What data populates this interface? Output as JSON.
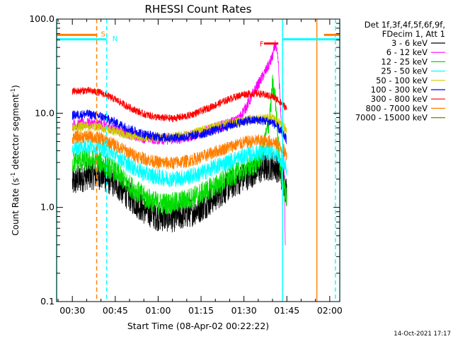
{
  "chart_data": {
    "type": "line",
    "title": "RHESSI Count Rates",
    "xlabel": "Start Time (08-Apr-02 00:22:22)",
    "ylabel_main": "Count Rate (s",
    "ylabel_sup": "-1",
    "ylabel_mid": " detector segment",
    "ylabel_sup2": "-1",
    "ylabel_end": ")",
    "y_scale": "log",
    "ylim": [
      0.1,
      100
    ],
    "xlim_minutes": [
      24.5,
      123.5
    ],
    "x_ticks": [
      {
        "label": "00:30",
        "minutes": 30
      },
      {
        "label": "00:45",
        "minutes": 45
      },
      {
        "label": "01:00",
        "minutes": 60
      },
      {
        "label": "01:15",
        "minutes": 75
      },
      {
        "label": "01:30",
        "minutes": 90
      },
      {
        "label": "01:45",
        "minutes": 105
      },
      {
        "label": "02:00",
        "minutes": 120
      }
    ],
    "y_ticks": [
      {
        "label": "100.0",
        "value": 100
      },
      {
        "label": "10.0",
        "value": 10
      },
      {
        "label": "1.0",
        "value": 1
      },
      {
        "label": "0.1",
        "value": 0.1
      }
    ],
    "legend_header": [
      "Det 1f,3f,4f,5f,6f,9f,",
      "FDecim 1, Att 1"
    ],
    "legend_position": "right",
    "series": [
      {
        "name": "3 - 6 keV",
        "color": "#000000",
        "points": [
          [
            30,
            1.8
          ],
          [
            35,
            2.2
          ],
          [
            40,
            2.2
          ],
          [
            45,
            1.8
          ],
          [
            50,
            1.3
          ],
          [
            55,
            0.95
          ],
          [
            60,
            0.8
          ],
          [
            65,
            0.78
          ],
          [
            70,
            0.85
          ],
          [
            75,
            1.0
          ],
          [
            80,
            1.3
          ],
          [
            85,
            1.7
          ],
          [
            90,
            2.1
          ],
          [
            95,
            2.5
          ],
          [
            100,
            2.8
          ],
          [
            102,
            2.6
          ],
          [
            104,
            1.9
          ],
          [
            105,
            1.4
          ]
        ]
      },
      {
        "name": "6 - 12 keV",
        "color": "#ff00ff",
        "points": [
          [
            30,
            7.5
          ],
          [
            35,
            7.8
          ],
          [
            40,
            7.6
          ],
          [
            45,
            6.8
          ],
          [
            50,
            6.0
          ],
          [
            55,
            5.5
          ],
          [
            60,
            5.3
          ],
          [
            65,
            5.3
          ],
          [
            70,
            5.6
          ],
          [
            75,
            6.2
          ],
          [
            80,
            7.0
          ],
          [
            85,
            7.8
          ],
          [
            88,
            8.5
          ],
          [
            91,
            12
          ],
          [
            94,
            18
          ],
          [
            97,
            26
          ],
          [
            99,
            34
          ],
          [
            100,
            40
          ],
          [
            101,
            55
          ],
          [
            102,
            35
          ],
          [
            103,
            8
          ],
          [
            104,
            3.2
          ],
          [
            104.5,
            0.35
          ]
        ]
      },
      {
        "name": "12 - 25 keV",
        "color": "#00dd00",
        "points": [
          [
            30,
            3.0
          ],
          [
            35,
            3.2
          ],
          [
            40,
            3.0
          ],
          [
            45,
            2.4
          ],
          [
            50,
            1.7
          ],
          [
            55,
            1.3
          ],
          [
            60,
            1.1
          ],
          [
            65,
            1.1
          ],
          [
            70,
            1.2
          ],
          [
            75,
            1.4
          ],
          [
            80,
            1.7
          ],
          [
            85,
            2.1
          ],
          [
            90,
            2.5
          ],
          [
            95,
            3.0
          ],
          [
            97,
            4.5
          ],
          [
            99,
            9
          ],
          [
            100,
            20
          ],
          [
            101,
            14
          ],
          [
            102,
            5
          ],
          [
            103,
            2.2
          ],
          [
            104,
            1.6
          ],
          [
            105,
            1.2
          ]
        ]
      },
      {
        "name": "25 - 50 keV",
        "color": "#00ffff",
        "points": [
          [
            30,
            4.2
          ],
          [
            35,
            4.5
          ],
          [
            40,
            4.3
          ],
          [
            45,
            3.6
          ],
          [
            50,
            2.8
          ],
          [
            55,
            2.3
          ],
          [
            60,
            2.1
          ],
          [
            65,
            2.0
          ],
          [
            70,
            2.1
          ],
          [
            75,
            2.3
          ],
          [
            80,
            2.7
          ],
          [
            85,
            3.1
          ],
          [
            90,
            3.5
          ],
          [
            95,
            3.8
          ],
          [
            100,
            3.9
          ],
          [
            102,
            3.6
          ],
          [
            104,
            3.0
          ],
          [
            105,
            2.5
          ]
        ]
      },
      {
        "name": "50 - 100 keV",
        "color": "#cccc00",
        "points": [
          [
            30,
            7.0
          ],
          [
            35,
            7.4
          ],
          [
            40,
            7.1
          ],
          [
            45,
            6.4
          ],
          [
            50,
            5.8
          ],
          [
            55,
            5.5
          ],
          [
            60,
            5.5
          ],
          [
            65,
            5.6
          ],
          [
            70,
            5.9
          ],
          [
            75,
            6.5
          ],
          [
            80,
            7.2
          ],
          [
            85,
            7.8
          ],
          [
            90,
            8.4
          ],
          [
            95,
            8.8
          ],
          [
            100,
            8.8
          ],
          [
            102,
            8.2
          ],
          [
            104,
            7.2
          ],
          [
            105,
            6.5
          ]
        ]
      },
      {
        "name": "100 - 300 keV",
        "color": "#0000ff",
        "points": [
          [
            30,
            9.5
          ],
          [
            35,
            9.8
          ],
          [
            40,
            9.3
          ],
          [
            45,
            8.0
          ],
          [
            50,
            6.8
          ],
          [
            55,
            6.0
          ],
          [
            60,
            5.6
          ],
          [
            65,
            5.5
          ],
          [
            70,
            5.6
          ],
          [
            75,
            6.0
          ],
          [
            80,
            6.6
          ],
          [
            85,
            7.4
          ],
          [
            90,
            8.2
          ],
          [
            95,
            8.5
          ],
          [
            100,
            8.0
          ],
          [
            102,
            7.0
          ],
          [
            104,
            5.8
          ],
          [
            105,
            5.2
          ]
        ]
      },
      {
        "name": "300 - 800 keV",
        "color": "#ff0000",
        "points": [
          [
            30,
            17
          ],
          [
            35,
            17.5
          ],
          [
            40,
            16.5
          ],
          [
            45,
            14
          ],
          [
            50,
            11.5
          ],
          [
            55,
            9.8
          ],
          [
            60,
            9.0
          ],
          [
            65,
            8.8
          ],
          [
            70,
            9.3
          ],
          [
            75,
            10.5
          ],
          [
            80,
            12.2
          ],
          [
            85,
            14.2
          ],
          [
            90,
            16
          ],
          [
            95,
            16.2
          ],
          [
            100,
            15
          ],
          [
            102,
            13.8
          ],
          [
            104,
            12
          ],
          [
            105,
            11
          ]
        ]
      },
      {
        "name": "800 - 7000 keV",
        "color": "#ff7f00",
        "points": [
          [
            30,
            5.5
          ],
          [
            35,
            5.7
          ],
          [
            40,
            5.4
          ],
          [
            45,
            4.6
          ],
          [
            50,
            3.8
          ],
          [
            55,
            3.3
          ],
          [
            60,
            3.0
          ],
          [
            65,
            2.95
          ],
          [
            70,
            3.1
          ],
          [
            75,
            3.4
          ],
          [
            80,
            3.9
          ],
          [
            85,
            4.4
          ],
          [
            90,
            4.9
          ],
          [
            95,
            5.1
          ],
          [
            100,
            5.0
          ],
          [
            102,
            4.6
          ],
          [
            104,
            4.0
          ],
          [
            105,
            3.6
          ]
        ]
      },
      {
        "name": "7000 - 15000 keV",
        "color": "#7f7f00",
        "points": []
      }
    ],
    "vertical_lines": [
      {
        "minutes": 24.5,
        "color": "#00ffff",
        "style": "solid"
      },
      {
        "minutes": 38.5,
        "color": "#ff7f00",
        "style": "dashed"
      },
      {
        "minutes": 42.0,
        "color": "#00ffff",
        "style": "dashed"
      },
      {
        "minutes": 103.5,
        "color": "#00ffff",
        "style": "solid"
      },
      {
        "minutes": 115.5,
        "color": "#ff7f00",
        "style": "solid"
      },
      {
        "minutes": 122.0,
        "color": "#00ffff",
        "style": "dashed"
      },
      {
        "minutes": 123.5,
        "color": "#00ffff",
        "style": "solid"
      }
    ],
    "segments": [
      {
        "from": 24.5,
        "to": 38.5,
        "value": 68,
        "color": "#ff7f00"
      },
      {
        "from": 24.5,
        "to": 42.0,
        "value": 61,
        "color": "#00ffff"
      },
      {
        "from": 118.0,
        "to": 123.5,
        "value": 68,
        "color": "#ff7f00"
      },
      {
        "from": 103.5,
        "to": 123.5,
        "value": 61,
        "color": "#00ffff"
      },
      {
        "from": 97.0,
        "to": 102.0,
        "value": 55,
        "color": "#ff0000"
      }
    ],
    "annotations": [
      {
        "text": "S",
        "minutes": 40.0,
        "value": 70,
        "color": "#ff7f00"
      },
      {
        "text": "N",
        "minutes": 44.0,
        "value": 63,
        "color": "#00ffff"
      },
      {
        "text": "F",
        "minutes": 95.5,
        "value": 55,
        "color": "#ff0000"
      }
    ]
  },
  "footer": {
    "timestamp": "14-Oct-2021 17:17"
  }
}
